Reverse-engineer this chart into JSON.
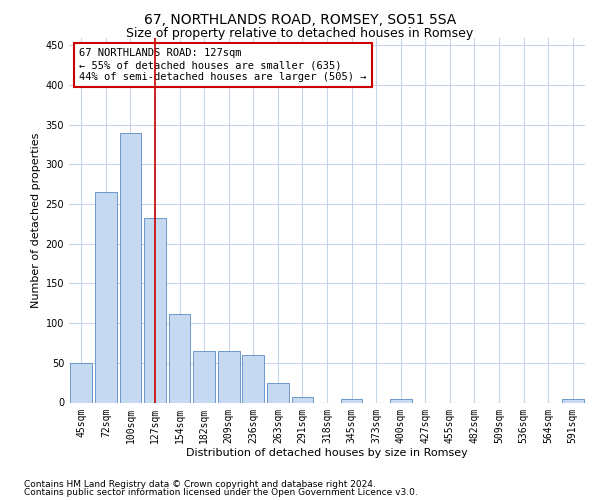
{
  "title": "67, NORTHLANDS ROAD, ROMSEY, SO51 5SA",
  "subtitle": "Size of property relative to detached houses in Romsey",
  "xlabel": "Distribution of detached houses by size in Romsey",
  "ylabel": "Number of detached properties",
  "categories": [
    "45sqm",
    "72sqm",
    "100sqm",
    "127sqm",
    "154sqm",
    "182sqm",
    "209sqm",
    "236sqm",
    "263sqm",
    "291sqm",
    "318sqm",
    "345sqm",
    "373sqm",
    "400sqm",
    "427sqm",
    "455sqm",
    "482sqm",
    "509sqm",
    "536sqm",
    "564sqm",
    "591sqm"
  ],
  "values": [
    50,
    265,
    340,
    232,
    112,
    65,
    65,
    60,
    24,
    7,
    0,
    5,
    0,
    4,
    0,
    0,
    0,
    0,
    0,
    0,
    4
  ],
  "bar_color": "#c5d9f1",
  "bar_edge_color": "#5b8ac4",
  "highlight_index": 3,
  "highlight_line_color": "#cc0000",
  "ylim": [
    0,
    460
  ],
  "yticks": [
    0,
    50,
    100,
    150,
    200,
    250,
    300,
    350,
    400,
    450
  ],
  "annotation_line1": "67 NORTHLANDS ROAD: 127sqm",
  "annotation_line2": "← 55% of detached houses are smaller (635)",
  "annotation_line3": "44% of semi-detached houses are larger (505) →",
  "annotation_box_color": "#ffffff",
  "annotation_box_edge_color": "#cc0000",
  "footer_line1": "Contains HM Land Registry data © Crown copyright and database right 2024.",
  "footer_line2": "Contains public sector information licensed under the Open Government Licence v3.0.",
  "background_color": "#ffffff",
  "grid_color": "#c8d4e8",
  "title_fontsize": 10,
  "subtitle_fontsize": 9,
  "axis_label_fontsize": 8,
  "tick_fontsize": 7,
  "annotation_fontsize": 7.5,
  "footer_fontsize": 6.5
}
